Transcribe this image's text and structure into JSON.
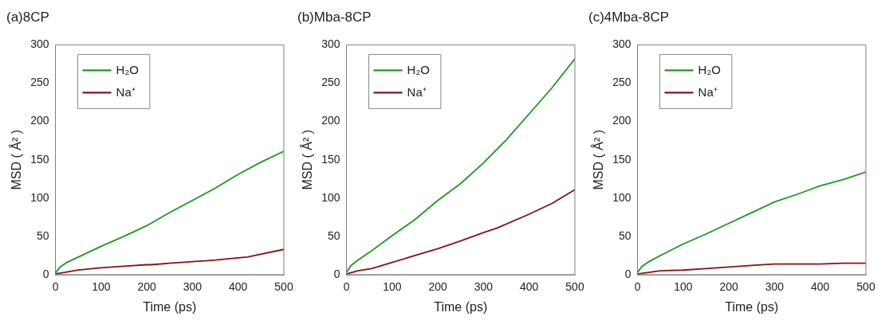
{
  "chart_data": [
    {
      "type": "line",
      "title": "(a)8CP",
      "xlabel": "Time (ps)",
      "ylabel": "MSD ( Å² )",
      "xlim": [
        0,
        500
      ],
      "xticks": [
        0,
        100,
        200,
        300,
        400,
        500
      ],
      "ylim": [
        0,
        300
      ],
      "yticks": [
        0,
        50,
        100,
        150,
        200,
        250,
        300
      ],
      "grid": false,
      "legend": "top left",
      "series": [
        {
          "name": "H₂O",
          "color": "#1a9a1a",
          "x": [
            0,
            10,
            25,
            50,
            100,
            150,
            200,
            250,
            300,
            350,
            400,
            450,
            500
          ],
          "values": [
            2,
            10,
            16,
            23,
            37,
            50,
            64,
            81,
            97,
            113,
            131,
            147,
            161
          ]
        },
        {
          "name": "Na⁺",
          "color": "#8b1010",
          "x": [
            0,
            50,
            100,
            150,
            200,
            210,
            250,
            300,
            350,
            400,
            420,
            500
          ],
          "values": [
            1,
            6,
            9,
            11,
            13,
            13,
            15,
            17,
            19,
            22,
            23,
            33
          ]
        }
      ]
    },
    {
      "type": "line",
      "title": "(b)Mba-8CP",
      "xlabel": "Time (ps)",
      "ylabel": "MSD ( Å² )",
      "xlim": [
        0,
        500
      ],
      "xticks": [
        0,
        100,
        200,
        300,
        400,
        500
      ],
      "ylim": [
        0,
        300
      ],
      "yticks": [
        0,
        50,
        100,
        150,
        200,
        250,
        300
      ],
      "grid": false,
      "legend": "top left",
      "series": [
        {
          "name": "H₂O",
          "color": "#1a9a1a",
          "x": [
            0,
            10,
            25,
            50,
            100,
            150,
            200,
            250,
            300,
            350,
            400,
            450,
            500
          ],
          "values": [
            3,
            12,
            19,
            29,
            51,
            72,
            97,
            119,
            146,
            176,
            210,
            244,
            282
          ]
        },
        {
          "name": "Na⁺",
          "color": "#8b1010",
          "x": [
            0,
            25,
            55,
            100,
            150,
            200,
            250,
            300,
            330,
            400,
            450,
            500
          ],
          "values": [
            1,
            5,
            8,
            16,
            25,
            34,
            44,
            55,
            61,
            79,
            93,
            111
          ]
        }
      ]
    },
    {
      "type": "line",
      "title": "(c)4Mba-8CP",
      "xlabel": "Time (ps)",
      "ylabel": "MSD ( Å² )",
      "xlim": [
        0,
        500
      ],
      "xticks": [
        0,
        100,
        200,
        300,
        400,
        500
      ],
      "ylim": [
        0,
        300
      ],
      "yticks": [
        0,
        50,
        100,
        150,
        200,
        250,
        300
      ],
      "grid": false,
      "legend": "top left",
      "series": [
        {
          "name": "H₂O",
          "color": "#1a9a1a",
          "x": [
            0,
            10,
            25,
            50,
            100,
            150,
            200,
            250,
            300,
            350,
            400,
            450,
            500
          ],
          "values": [
            3,
            11,
            17,
            25,
            40,
            53,
            67,
            81,
            95,
            105,
            116,
            124,
            134
          ]
        },
        {
          "name": "Na⁺",
          "color": "#8b1010",
          "x": [
            0,
            50,
            100,
            150,
            200,
            250,
            300,
            350,
            400,
            450,
            500
          ],
          "values": [
            1,
            5,
            6,
            8,
            10,
            12,
            14,
            14,
            14,
            15,
            15
          ]
        }
      ]
    }
  ]
}
